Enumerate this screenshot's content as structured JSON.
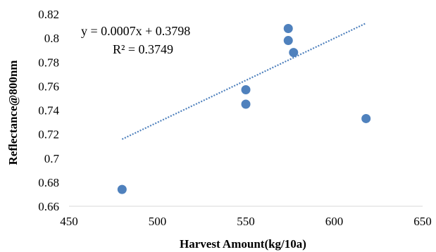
{
  "chart_data": {
    "type": "scatter",
    "title": "",
    "xlabel": "Harvest Amount(kg/10a)",
    "ylabel": "Reflectance@800nm",
    "xlim": [
      450,
      650
    ],
    "ylim": [
      0.66,
      0.82
    ],
    "x_ticks": [
      "450",
      "500",
      "550",
      "600",
      "650"
    ],
    "y_ticks": [
      "0.66",
      "0.68",
      "0.7",
      "0.72",
      "0.74",
      "0.76",
      "0.78",
      "0.8",
      "0.82"
    ],
    "grid": false,
    "legend": "none",
    "series": [
      {
        "points": [
          {
            "x": 480,
            "y": 0.674
          },
          {
            "x": 550,
            "y": 0.757
          },
          {
            "x": 550,
            "y": 0.745
          },
          {
            "x": 574,
            "y": 0.808
          },
          {
            "x": 574,
            "y": 0.798
          },
          {
            "x": 577,
            "y": 0.788
          },
          {
            "x": 618,
            "y": 0.733
          }
        ],
        "color": "#4f81bd"
      }
    ],
    "trendline": {
      "type": "linear",
      "slope": 0.0007,
      "intercept": 0.3798,
      "x_range": [
        480,
        618
      ],
      "color": "#4f81bd",
      "style": "dotted"
    },
    "annotations": {
      "equation": "y = 0.0007x + 0.3798",
      "r_squared": "R² = 0.3749"
    }
  }
}
